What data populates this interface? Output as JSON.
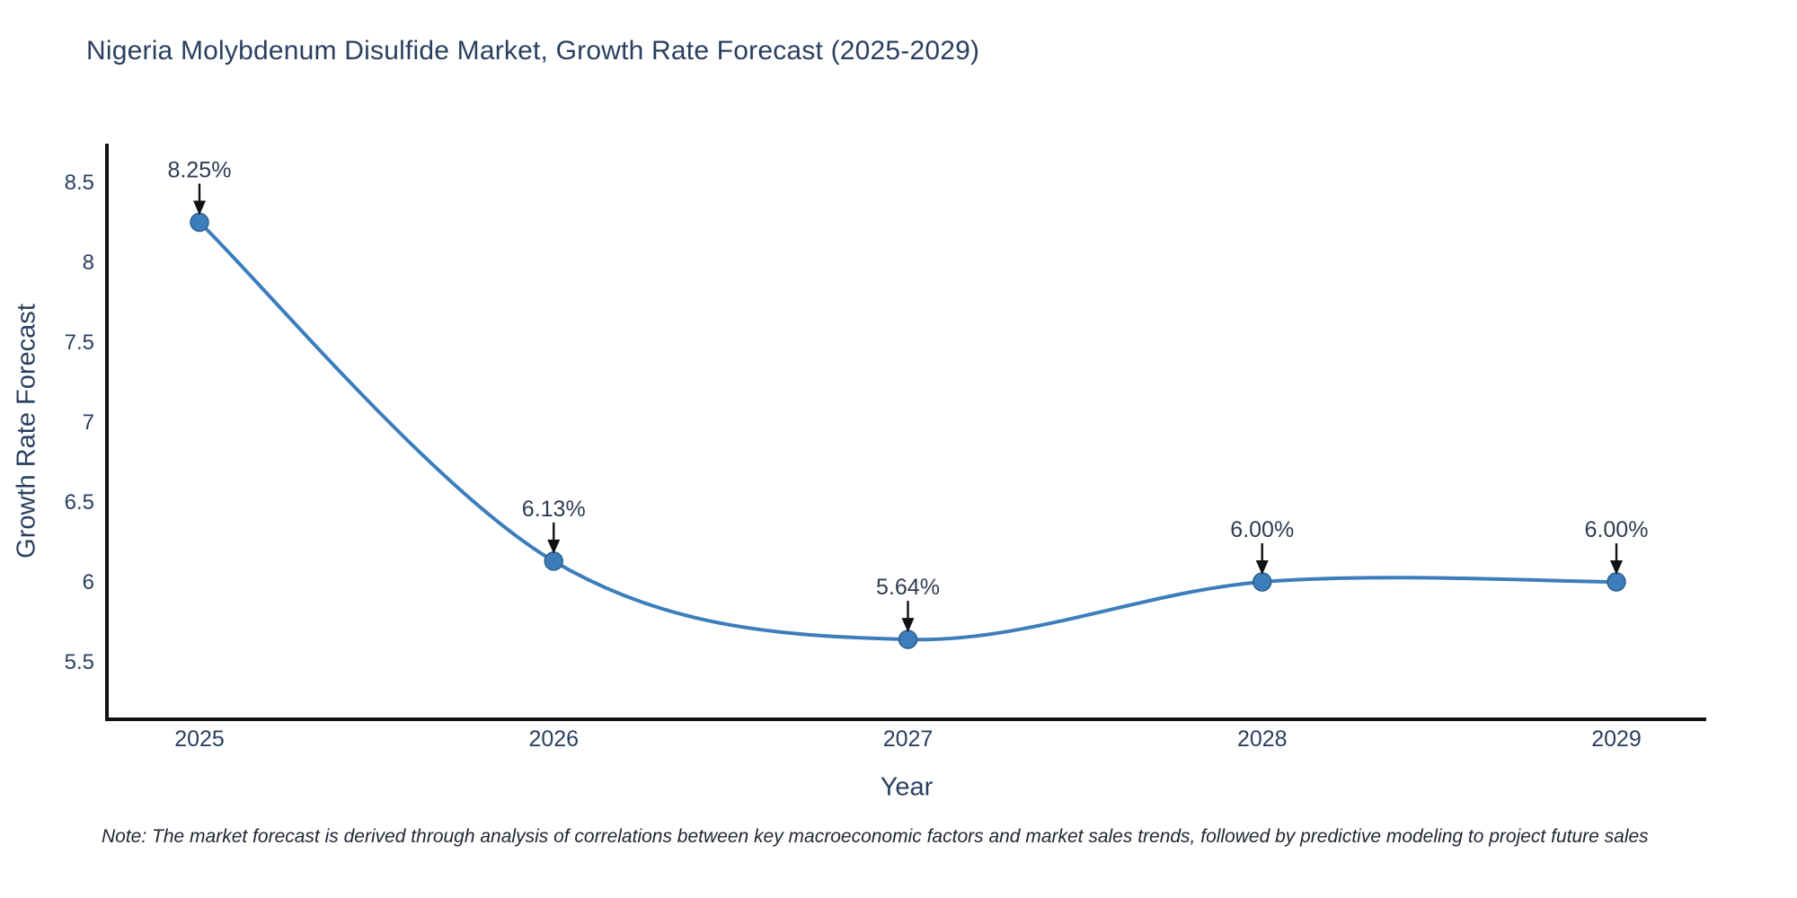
{
  "chart_data": {
    "type": "line",
    "title": "Nigeria Molybdenum Disulfide Market, Growth Rate Forecast (2025-2029)",
    "xlabel": "Year",
    "ylabel": "Growth Rate Forecast",
    "x": [
      2025,
      2026,
      2027,
      2028,
      2029
    ],
    "x_tick_labels": [
      "2025",
      "2026",
      "2027",
      "2028",
      "2029"
    ],
    "series": [
      {
        "name": "Growth Rate Forecast",
        "values": [
          8.25,
          6.13,
          5.64,
          6.0,
          6.0
        ],
        "point_labels": [
          "8.25%",
          "6.13%",
          "5.64%",
          "6.00%",
          "6.00%"
        ]
      }
    ],
    "y_ticks": [
      5.5,
      6,
      6.5,
      7,
      7.5,
      8,
      8.5
    ],
    "y_tick_labels": [
      "5.5",
      "6",
      "6.5",
      "7",
      "7.5",
      "8",
      "8.5"
    ],
    "ylim": [
      5.14,
      8.74
    ],
    "grid": false,
    "legend": false,
    "line_shape": "spline",
    "annotations_have_arrows": true,
    "note": "Note: The market forecast is derived through analysis of correlations between key macroeconomic factors and market sales trends, followed by predictive modeling to project future sales",
    "colors": {
      "line": "#3c7dbb",
      "marker_fill": "#3c7dbb",
      "marker_edge": "#2b618f",
      "axis_line": "#111111",
      "tick_text": "#2a3f5f",
      "title_text": "#2a3f5f",
      "annotation_text": "#2f3b52",
      "annotation_arrow": "#111111",
      "note_text": "#222733",
      "background": "#ffffff"
    }
  }
}
